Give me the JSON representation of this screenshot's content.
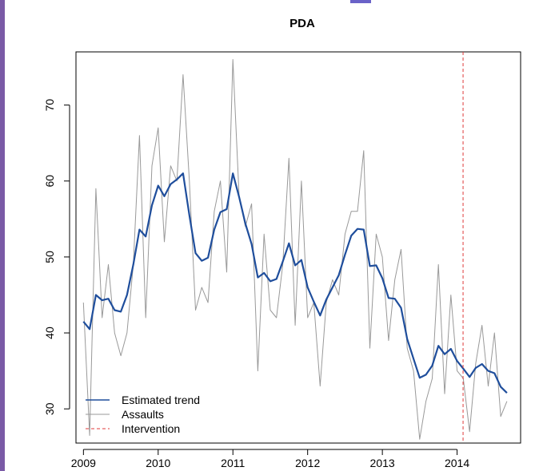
{
  "chart_data": {
    "type": "line",
    "title": "PDA",
    "xlabel": "",
    "ylabel": "",
    "xlim": [
      2008.9,
      2014.85
    ],
    "ylim": [
      25.5,
      77
    ],
    "xticks": [
      2009,
      2010,
      2011,
      2012,
      2013,
      2014
    ],
    "yticks": [
      30,
      40,
      50,
      60,
      70
    ],
    "grid": false,
    "legend": {
      "position": "bottom-left",
      "entries": [
        "Estimated trend",
        "Assaults",
        "Intervention"
      ]
    },
    "colors": {
      "trend": "#1f4e9c",
      "assaults": "#999999",
      "intervention": "#e03a3a"
    },
    "series": [
      {
        "name": "Assaults",
        "x": [
          2009.0,
          2009.083,
          2009.167,
          2009.25,
          2009.333,
          2009.417,
          2009.5,
          2009.583,
          2009.667,
          2009.75,
          2009.833,
          2009.917,
          2010.0,
          2010.083,
          2010.167,
          2010.25,
          2010.333,
          2010.417,
          2010.5,
          2010.583,
          2010.667,
          2010.75,
          2010.833,
          2010.917,
          2011.0,
          2011.083,
          2011.167,
          2011.25,
          2011.333,
          2011.417,
          2011.5,
          2011.583,
          2011.667,
          2011.75,
          2011.833,
          2011.917,
          2012.0,
          2012.083,
          2012.167,
          2012.25,
          2012.333,
          2012.417,
          2012.5,
          2012.583,
          2012.667,
          2012.75,
          2012.833,
          2012.917,
          2013.0,
          2013.083,
          2013.167,
          2013.25,
          2013.333,
          2013.417,
          2013.5,
          2013.583,
          2013.667,
          2013.75,
          2013.833,
          2013.917,
          2014.0,
          2014.083,
          2014.167,
          2014.25,
          2014.333,
          2014.417,
          2014.5,
          2014.583,
          2014.667
        ],
        "y": [
          44,
          26.5,
          59,
          42,
          49,
          40,
          37,
          40,
          49,
          66,
          42,
          62,
          67,
          52,
          62,
          60,
          74,
          60,
          43,
          46,
          44,
          56,
          60,
          48,
          76,
          58,
          54,
          57,
          35,
          53,
          43,
          42,
          49,
          63,
          41,
          60,
          42,
          44,
          33,
          44,
          47,
          45,
          53,
          56,
          56,
          64,
          38,
          53,
          50,
          39,
          47,
          51,
          38,
          35,
          26,
          31,
          34,
          49,
          32,
          45,
          35,
          34,
          27,
          36,
          41,
          33,
          40,
          29,
          31
        ]
      },
      {
        "name": "Estimated trend",
        "x": [
          2009.0,
          2009.083,
          2009.167,
          2009.25,
          2009.333,
          2009.417,
          2009.5,
          2009.583,
          2009.667,
          2009.75,
          2009.833,
          2009.917,
          2010.0,
          2010.083,
          2010.167,
          2010.25,
          2010.333,
          2010.417,
          2010.5,
          2010.583,
          2010.667,
          2010.75,
          2010.833,
          2010.917,
          2011.0,
          2011.083,
          2011.167,
          2011.25,
          2011.333,
          2011.417,
          2011.5,
          2011.583,
          2011.667,
          2011.75,
          2011.833,
          2011.917,
          2012.0,
          2012.083,
          2012.167,
          2012.25,
          2012.333,
          2012.417,
          2012.5,
          2012.583,
          2012.667,
          2012.75,
          2012.833,
          2012.917,
          2013.0,
          2013.083,
          2013.167,
          2013.25,
          2013.333,
          2013.417,
          2013.5,
          2013.583,
          2013.667,
          2013.75,
          2013.833,
          2013.917,
          2014.0,
          2014.083,
          2014.167,
          2014.25,
          2014.333,
          2014.417,
          2014.5,
          2014.583,
          2014.667
        ],
        "y": [
          41.5,
          40.5,
          45.0,
          44.3,
          44.5,
          43.0,
          42.8,
          45.0,
          49.0,
          53.6,
          52.7,
          56.8,
          59.4,
          58.0,
          59.6,
          60.2,
          61.0,
          55.5,
          50.5,
          49.5,
          49.9,
          53.6,
          55.9,
          56.3,
          61.0,
          57.9,
          54.4,
          51.7,
          47.3,
          47.9,
          46.8,
          47.1,
          49.4,
          51.8,
          48.9,
          49.6,
          46.0,
          44.1,
          42.3,
          44.4,
          46.0,
          47.6,
          50.3,
          52.8,
          53.7,
          53.6,
          48.8,
          48.9,
          47.2,
          44.6,
          44.5,
          43.3,
          39.2,
          36.6,
          34.1,
          34.5,
          35.7,
          38.3,
          37.2,
          37.9,
          36.3,
          35.3,
          34.2,
          35.4,
          35.9,
          35.0,
          34.7,
          32.9,
          32.1
        ]
      }
    ],
    "intervention_x": 2014.08
  }
}
